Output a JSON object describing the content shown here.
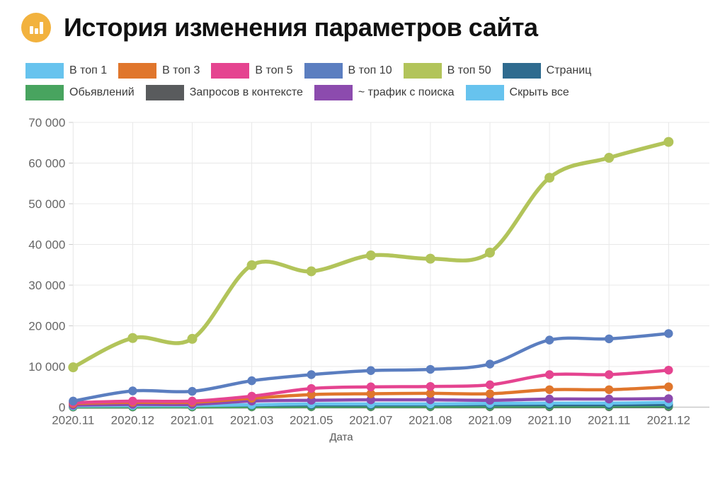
{
  "header": {
    "title": "История изменения параметров сайта",
    "icon": "bar-chart-icon",
    "icon_bg": "#f2b23e",
    "icon_glyph_color": "#ffffff"
  },
  "legend": {
    "hide_all": {
      "id": "hide-all",
      "label": "Скрыть все",
      "color": "#67c3ee"
    }
  },
  "chart_data": {
    "type": "line",
    "title": "История изменения параметров сайта",
    "xlabel": "Дата",
    "ylabel": "",
    "grid": true,
    "legend_position": "top",
    "ylim": [
      0,
      70000
    ],
    "y_tick_step": 10000,
    "y_ticks": [
      "0",
      "10 000",
      "20 000",
      "30 000",
      "40 000",
      "50 000",
      "60 000",
      "70 000"
    ],
    "categories": [
      "2020.11",
      "2020.12",
      "2021.01",
      "2021.03",
      "2021.05",
      "2021.07",
      "2021.08",
      "2021.09",
      "2021.10",
      "2021.11",
      "2021.12"
    ],
    "series": [
      {
        "id": "top1",
        "name": "В топ 1",
        "color": "#67c3ee",
        "values": [
          300,
          400,
          400,
          600,
          800,
          800,
          800,
          900,
          1000,
          1000,
          1200
        ]
      },
      {
        "id": "top3",
        "name": "В топ 3",
        "color": "#e0762c",
        "values": [
          900,
          1200,
          1200,
          2200,
          3100,
          3300,
          3400,
          3300,
          4300,
          4300,
          5000
        ]
      },
      {
        "id": "top5",
        "name": "В топ 5",
        "color": "#e54490",
        "values": [
          1100,
          1500,
          1500,
          2700,
          4600,
          5000,
          5100,
          5500,
          8000,
          8000,
          9100
        ]
      },
      {
        "id": "top10",
        "name": "В топ 10",
        "color": "#5b7ec0",
        "values": [
          1500,
          4000,
          3900,
          6500,
          8000,
          9000,
          9300,
          10600,
          16500,
          16800,
          18100
        ]
      },
      {
        "id": "top50",
        "name": "В топ 50",
        "color": "#b2c45a",
        "values": [
          9800,
          17000,
          16800,
          34900,
          33400,
          37300,
          36500,
          38000,
          56400,
          61300,
          65200
        ]
      },
      {
        "id": "pages",
        "name": "Страниц",
        "color": "#2f6b8f",
        "values": [
          400,
          450,
          450,
          500,
          550,
          550,
          600,
          600,
          600,
          600,
          650
        ]
      },
      {
        "id": "ads",
        "name": "Обьявлений",
        "color": "#48a45f",
        "values": [
          100,
          120,
          130,
          150,
          180,
          200,
          200,
          220,
          250,
          250,
          280
        ]
      },
      {
        "id": "context-queries",
        "name": "Запросов в контексте",
        "color": "#595b5d",
        "values": [
          50,
          60,
          60,
          80,
          100,
          100,
          100,
          100,
          120,
          120,
          130
        ]
      },
      {
        "id": "search-traffic",
        "name": "~ трафик с поиска",
        "color": "#8c4bae",
        "values": [
          500,
          700,
          700,
          1500,
          1700,
          1800,
          1800,
          1700,
          2000,
          2000,
          2100
        ]
      }
    ],
    "draw_order": [
      "context-queries",
      "ads",
      "pages",
      "top1",
      "search-traffic",
      "top3",
      "top5",
      "top10",
      "top50"
    ],
    "colors": {
      "grid_line": "#e8e8e8",
      "axis_line": "#c9c9c9",
      "tick_text": "#666666"
    }
  }
}
